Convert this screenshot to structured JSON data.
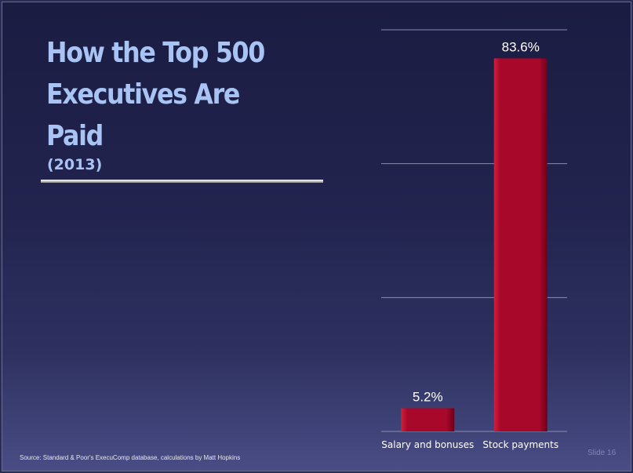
{
  "slide": {
    "title_lines": [
      "How the Top 500",
      "Executives Are",
      "Paid"
    ],
    "subtitle": "(2013)",
    "source": "Source: Standard & Poor's ExecuComp database, calculations by Matt Hopkins",
    "slide_number": "Slide 16"
  },
  "colors": {
    "bar": "#a8082a",
    "title": "#a8c4f4",
    "gridline": "#8a8cb0"
  },
  "chart_data": {
    "type": "bar",
    "title": "",
    "xlabel": "",
    "ylabel": "",
    "categories": [
      "Salary and bonuses",
      "Stock payments"
    ],
    "values": [
      5.2,
      83.6
    ],
    "value_labels": [
      "5.2%",
      "83.6%"
    ],
    "ylim": [
      0,
      90
    ],
    "grid": true,
    "gridline_values": [
      0,
      30,
      60,
      90
    ],
    "legend": false
  }
}
